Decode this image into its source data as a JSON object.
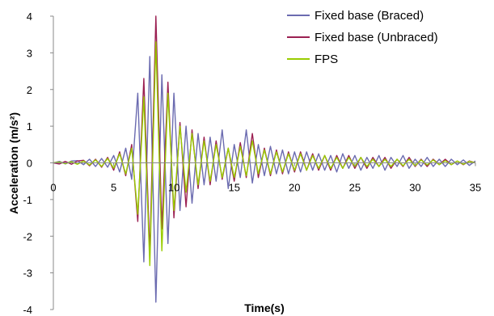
{
  "chart_data": {
    "type": "line",
    "title": "",
    "xlabel": "Time(s)",
    "ylabel": "Acceleration (m/s²)",
    "xlim": [
      0,
      35
    ],
    "ylim": [
      -4,
      4
    ],
    "xticks": [
      0,
      5,
      10,
      15,
      20,
      25,
      30,
      35
    ],
    "yticks": [
      4,
      3,
      2,
      1,
      0,
      -1,
      -2,
      -3,
      -4
    ],
    "grid": false,
    "legend_position": "top-right",
    "x_step": 0.5,
    "series": [
      {
        "name": "Fixed base (Braced)",
        "color": "#6b6bb0",
        "x_start": 0,
        "values": [
          0,
          0.04,
          -0.03,
          0.05,
          0.06,
          -0.05,
          0.1,
          -0.1,
          0.12,
          -0.12,
          0.2,
          -0.25,
          0.4,
          -0.45,
          1.9,
          -2.7,
          2.9,
          -3.8,
          2.4,
          -2.2,
          1.9,
          -1.3,
          1.0,
          -1.1,
          0.8,
          -0.6,
          0.7,
          -0.5,
          0.9,
          -0.7,
          0.5,
          -0.4,
          0.9,
          -0.55,
          0.5,
          -0.35,
          0.45,
          -0.3,
          0.35,
          -0.3,
          0.3,
          -0.25,
          0.3,
          -0.2,
          0.25,
          -0.2,
          0.2,
          -0.25,
          0.25,
          -0.15,
          0.2,
          -0.2,
          0.15,
          -0.15,
          0.2,
          -0.2,
          0.15,
          -0.1,
          0.2,
          -0.15,
          0.1,
          -0.1,
          0.15,
          -0.1,
          0.1,
          -0.1,
          0.1,
          -0.05,
          0.08,
          -0.07,
          0.05
        ]
      },
      {
        "name": "Fixed base (Unbraced)",
        "color": "#9b2052",
        "x_start": 0,
        "values": [
          0,
          -0.03,
          0.04,
          -0.04,
          0.05,
          0.07,
          -0.08,
          0.1,
          -0.12,
          0.15,
          -0.2,
          0.3,
          -0.35,
          0.5,
          -1.6,
          2.3,
          -2.5,
          4.0,
          -1.8,
          2.2,
          -1.5,
          1.1,
          -1.2,
          0.9,
          -0.7,
          0.7,
          -0.6,
          0.6,
          -0.45,
          0.4,
          -0.5,
          0.55,
          -0.4,
          0.8,
          -0.4,
          0.4,
          -0.35,
          0.35,
          -0.3,
          0.3,
          -0.25,
          0.3,
          -0.2,
          0.25,
          -0.2,
          0.2,
          -0.2,
          0.2,
          -0.15,
          0.2,
          -0.15,
          0.15,
          -0.15,
          0.15,
          -0.1,
          0.15,
          -0.15,
          0.1,
          -0.1,
          0.15,
          -0.1,
          0.1,
          -0.1,
          0.1,
          -0.05,
          0.1,
          -0.05,
          0.05,
          -0.05,
          0.05,
          0
        ]
      },
      {
        "name": "FPS",
        "color": "#99cc00",
        "x_start": 0,
        "values": [
          0,
          0.02,
          -0.02,
          0.03,
          -0.04,
          0.05,
          -0.06,
          0.08,
          -0.1,
          0.12,
          -0.15,
          0.25,
          -0.3,
          0.4,
          -1.4,
          1.8,
          -2.8,
          3.3,
          -2.4,
          1.9,
          -1.3,
          1.0,
          -0.8,
          0.8,
          -0.6,
          0.6,
          -0.5,
          0.5,
          -0.4,
          0.4,
          -0.4,
          0.45,
          -0.35,
          0.6,
          -0.3,
          0.35,
          -0.3,
          0.3,
          -0.25,
          0.25,
          -0.2,
          0.25,
          -0.2,
          0.2,
          -0.15,
          0.2,
          -0.15,
          0.15,
          -0.15,
          0.15,
          -0.1,
          0.15,
          -0.1,
          0.1,
          -0.1,
          0.1,
          -0.1,
          0.1,
          -0.08,
          0.1,
          -0.08,
          0.08,
          -0.06,
          0.08,
          -0.05,
          0.06,
          -0.05,
          0.05,
          -0.04,
          0.04,
          0
        ]
      }
    ]
  }
}
